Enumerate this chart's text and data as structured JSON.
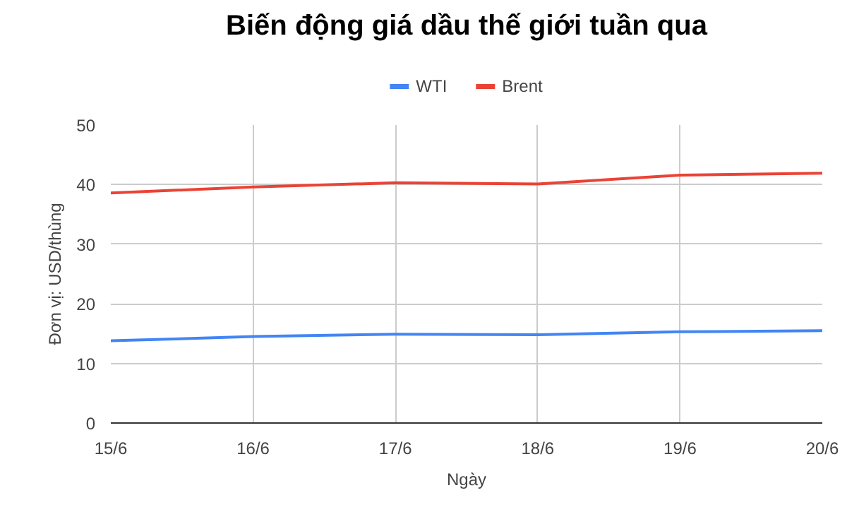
{
  "chart_data": {
    "type": "line",
    "title": "Biến động giá dầu thế giới tuần qua",
    "xlabel": "Ngày",
    "ylabel": "Đơn vị: USD/thùng",
    "categories": [
      "15/6",
      "16/6",
      "17/6",
      "18/6",
      "19/6",
      "20/6"
    ],
    "series": [
      {
        "name": "WTI",
        "color": "#4285f4",
        "values": [
          13.8,
          14.5,
          14.9,
          14.8,
          15.3,
          15.5
        ]
      },
      {
        "name": "Brent",
        "color": "#ea4335",
        "values": [
          38.6,
          39.6,
          40.3,
          40.1,
          41.6,
          41.9
        ]
      }
    ],
    "ylim": [
      0,
      50
    ],
    "yticks": [
      0,
      10,
      20,
      30,
      40,
      50
    ],
    "grid": true,
    "legend": "top",
    "marker": "none",
    "line_style": "solid"
  }
}
